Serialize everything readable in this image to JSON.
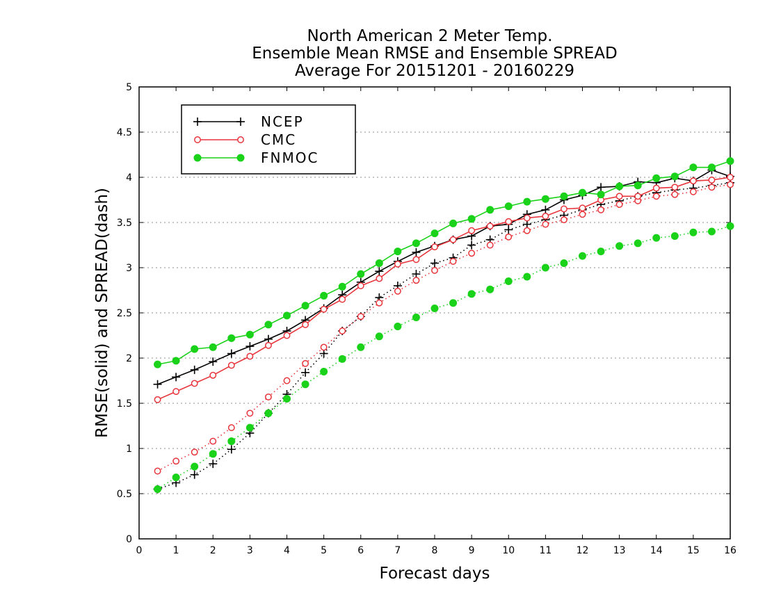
{
  "chart_data": {
    "type": "line",
    "title": [
      "North American 2 Meter Temp.",
      "Ensemble Mean RMSE and Ensemble SPREAD",
      "Average For 20151201 - 20160229"
    ],
    "xlabel": "Forecast days",
    "ylabel": "RMSE(solid) and SPREAD(dash)",
    "xlim": [
      0,
      16
    ],
    "ylim": [
      0,
      5
    ],
    "x_ticks": [
      "0",
      "1",
      "2",
      "3",
      "4",
      "5",
      "6",
      "7",
      "8",
      "9",
      "10",
      "11",
      "12",
      "13",
      "14",
      "15",
      "16"
    ],
    "y_ticks": [
      "0",
      "0.5",
      "1",
      "1.5",
      "2",
      "2.5",
      "3",
      "3.5",
      "4",
      "4.5",
      "5"
    ],
    "grid": true,
    "legend_position": "top-left",
    "x": [
      0.5,
      1,
      1.5,
      2,
      2.5,
      3,
      3.5,
      4,
      4.5,
      5,
      5.5,
      6,
      6.5,
      7,
      7.5,
      8,
      8.5,
      9,
      9.5,
      10,
      10.5,
      11,
      11.5,
      12,
      12.5,
      13,
      13.5,
      14,
      14.5,
      15,
      15.5,
      16
    ],
    "series": [
      {
        "name": "NCEP",
        "color": "#000000",
        "marker": "plus",
        "rmse": [
          1.71,
          1.79,
          1.87,
          1.96,
          2.05,
          2.13,
          2.21,
          2.3,
          2.42,
          2.55,
          2.7,
          2.84,
          2.96,
          3.07,
          3.17,
          3.24,
          3.31,
          3.35,
          3.46,
          3.48,
          3.59,
          3.64,
          3.75,
          3.8,
          3.89,
          3.9,
          3.95,
          3.94,
          3.99,
          3.96,
          4.08,
          4.01
        ],
        "spread": [
          0.55,
          0.62,
          0.71,
          0.83,
          0.99,
          1.17,
          1.39,
          1.6,
          1.84,
          2.05,
          2.3,
          2.46,
          2.67,
          2.8,
          2.93,
          3.05,
          3.11,
          3.25,
          3.31,
          3.42,
          3.48,
          3.53,
          3.58,
          3.64,
          3.7,
          3.74,
          3.79,
          3.83,
          3.86,
          3.88,
          3.91,
          3.94
        ]
      },
      {
        "name": "CMC",
        "color": "#e8343a",
        "marker": "open-circle",
        "rmse": [
          1.54,
          1.63,
          1.72,
          1.81,
          1.92,
          2.02,
          2.14,
          2.25,
          2.37,
          2.54,
          2.65,
          2.8,
          2.88,
          3.04,
          3.09,
          3.23,
          3.31,
          3.41,
          3.46,
          3.51,
          3.55,
          3.57,
          3.65,
          3.66,
          3.75,
          3.79,
          3.79,
          3.88,
          3.89,
          3.96,
          3.97,
          4.0
        ],
        "spread": [
          0.75,
          0.86,
          0.96,
          1.08,
          1.23,
          1.39,
          1.57,
          1.75,
          1.94,
          2.12,
          2.3,
          2.46,
          2.61,
          2.74,
          2.86,
          2.97,
          3.07,
          3.16,
          3.25,
          3.34,
          3.41,
          3.48,
          3.53,
          3.59,
          3.64,
          3.7,
          3.74,
          3.79,
          3.81,
          3.84,
          3.89,
          3.92
        ]
      },
      {
        "name": "FNMOC",
        "color": "#19d219",
        "marker": "filled-circle",
        "rmse": [
          1.93,
          1.97,
          2.1,
          2.12,
          2.22,
          2.26,
          2.37,
          2.47,
          2.58,
          2.69,
          2.79,
          2.93,
          3.05,
          3.18,
          3.27,
          3.38,
          3.49,
          3.54,
          3.64,
          3.68,
          3.73,
          3.76,
          3.79,
          3.83,
          3.81,
          3.9,
          3.91,
          3.99,
          4.01,
          4.11,
          4.11,
          4.18
        ],
        "spread": [
          0.55,
          0.68,
          0.8,
          0.94,
          1.08,
          1.23,
          1.39,
          1.55,
          1.71,
          1.85,
          1.99,
          2.12,
          2.24,
          2.35,
          2.45,
          2.55,
          2.61,
          2.71,
          2.76,
          2.85,
          2.9,
          3.0,
          3.05,
          3.13,
          3.18,
          3.24,
          3.27,
          3.33,
          3.35,
          3.39,
          3.4,
          3.46
        ]
      }
    ]
  }
}
